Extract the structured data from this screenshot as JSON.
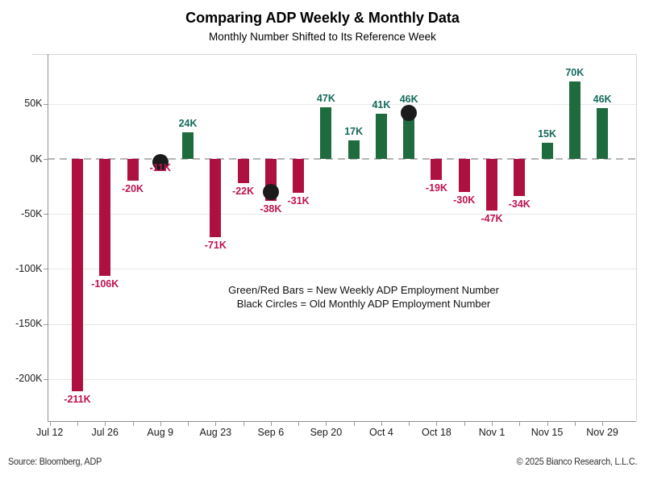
{
  "title": "Comparing ADP Weekly & Monthly Data",
  "subtitle": "Monthly Number Shifted to Its Reference Week",
  "chart_data": {
    "type": "bar",
    "title": "Comparing ADP Weekly & Monthly Data",
    "subtitle": "Monthly Number Shifted to Its Reference Week",
    "ylim": [
      -238,
      95
    ],
    "grid": "horizontal",
    "zero_line": "dashed",
    "y_ticks": [
      {
        "label": "50K",
        "value": 50
      },
      {
        "label": "0K",
        "value": 0
      },
      {
        "label": "-50K",
        "value": -50
      },
      {
        "label": "-100K",
        "value": -100
      },
      {
        "label": "-150K",
        "value": -150
      },
      {
        "label": "-200K",
        "value": -200
      }
    ],
    "x_tick_labels": [
      "Jul 12",
      "Jul 26",
      "Aug 9",
      "Aug 23",
      "Sep 6",
      "Sep 20",
      "Oct 4",
      "Oct 18",
      "Nov 1",
      "Nov 15",
      "Nov 29"
    ],
    "x_tick_slots": [
      0,
      2,
      4,
      6,
      8,
      10,
      12,
      14,
      16,
      18,
      20
    ],
    "num_slots": 21,
    "bars": [
      {
        "slot": 1,
        "value": -211,
        "label": "-211K"
      },
      {
        "slot": 2,
        "value": -106,
        "label": "-106K"
      },
      {
        "slot": 3,
        "value": -20,
        "label": "-20K"
      },
      {
        "slot": 4,
        "value": -11,
        "label": "-11K",
        "label_dy": -14
      },
      {
        "slot": 5,
        "value": 24,
        "label": "24K"
      },
      {
        "slot": 6,
        "value": -71,
        "label": "-71K"
      },
      {
        "slot": 7,
        "value": -22,
        "label": "-22K"
      },
      {
        "slot": 8,
        "value": -38,
        "label": "-38K"
      },
      {
        "slot": 9,
        "value": -31,
        "label": "-31K"
      },
      {
        "slot": 10,
        "value": 47,
        "label": "47K"
      },
      {
        "slot": 11,
        "value": 17,
        "label": "17K"
      },
      {
        "slot": 12,
        "value": 41,
        "label": "41K"
      },
      {
        "slot": 13,
        "value": 46,
        "label": "46K"
      },
      {
        "slot": 14,
        "value": -19,
        "label": "-19K"
      },
      {
        "slot": 15,
        "value": -30,
        "label": "-30K"
      },
      {
        "slot": 16,
        "value": -47,
        "label": "-47K"
      },
      {
        "slot": 17,
        "value": -34,
        "label": "-34K"
      },
      {
        "slot": 18,
        "value": 15,
        "label": "15K"
      },
      {
        "slot": 19,
        "value": 70,
        "label": "70K"
      },
      {
        "slot": 20,
        "value": 46,
        "label": "46K"
      }
    ],
    "circles": [
      {
        "slot": 4,
        "value": -3
      },
      {
        "slot": 8,
        "value": -30
      },
      {
        "slot": 13,
        "value": 42
      }
    ],
    "annotations": [
      "Green/Red Bars = New Weekly ADP Employment Number",
      "Black Circles = Old Monthly ADP Employment Number"
    ],
    "colors": {
      "bar_positive": "#1e6b3e",
      "bar_negative": "#ae1140",
      "label_positive": "#15695a",
      "label_negative": "#be1350",
      "circle": "#1b1b1b"
    }
  },
  "footer": {
    "left": "Source: Bloomberg, ADP",
    "right": "© 2025 Bianco Research, L.L.C."
  }
}
